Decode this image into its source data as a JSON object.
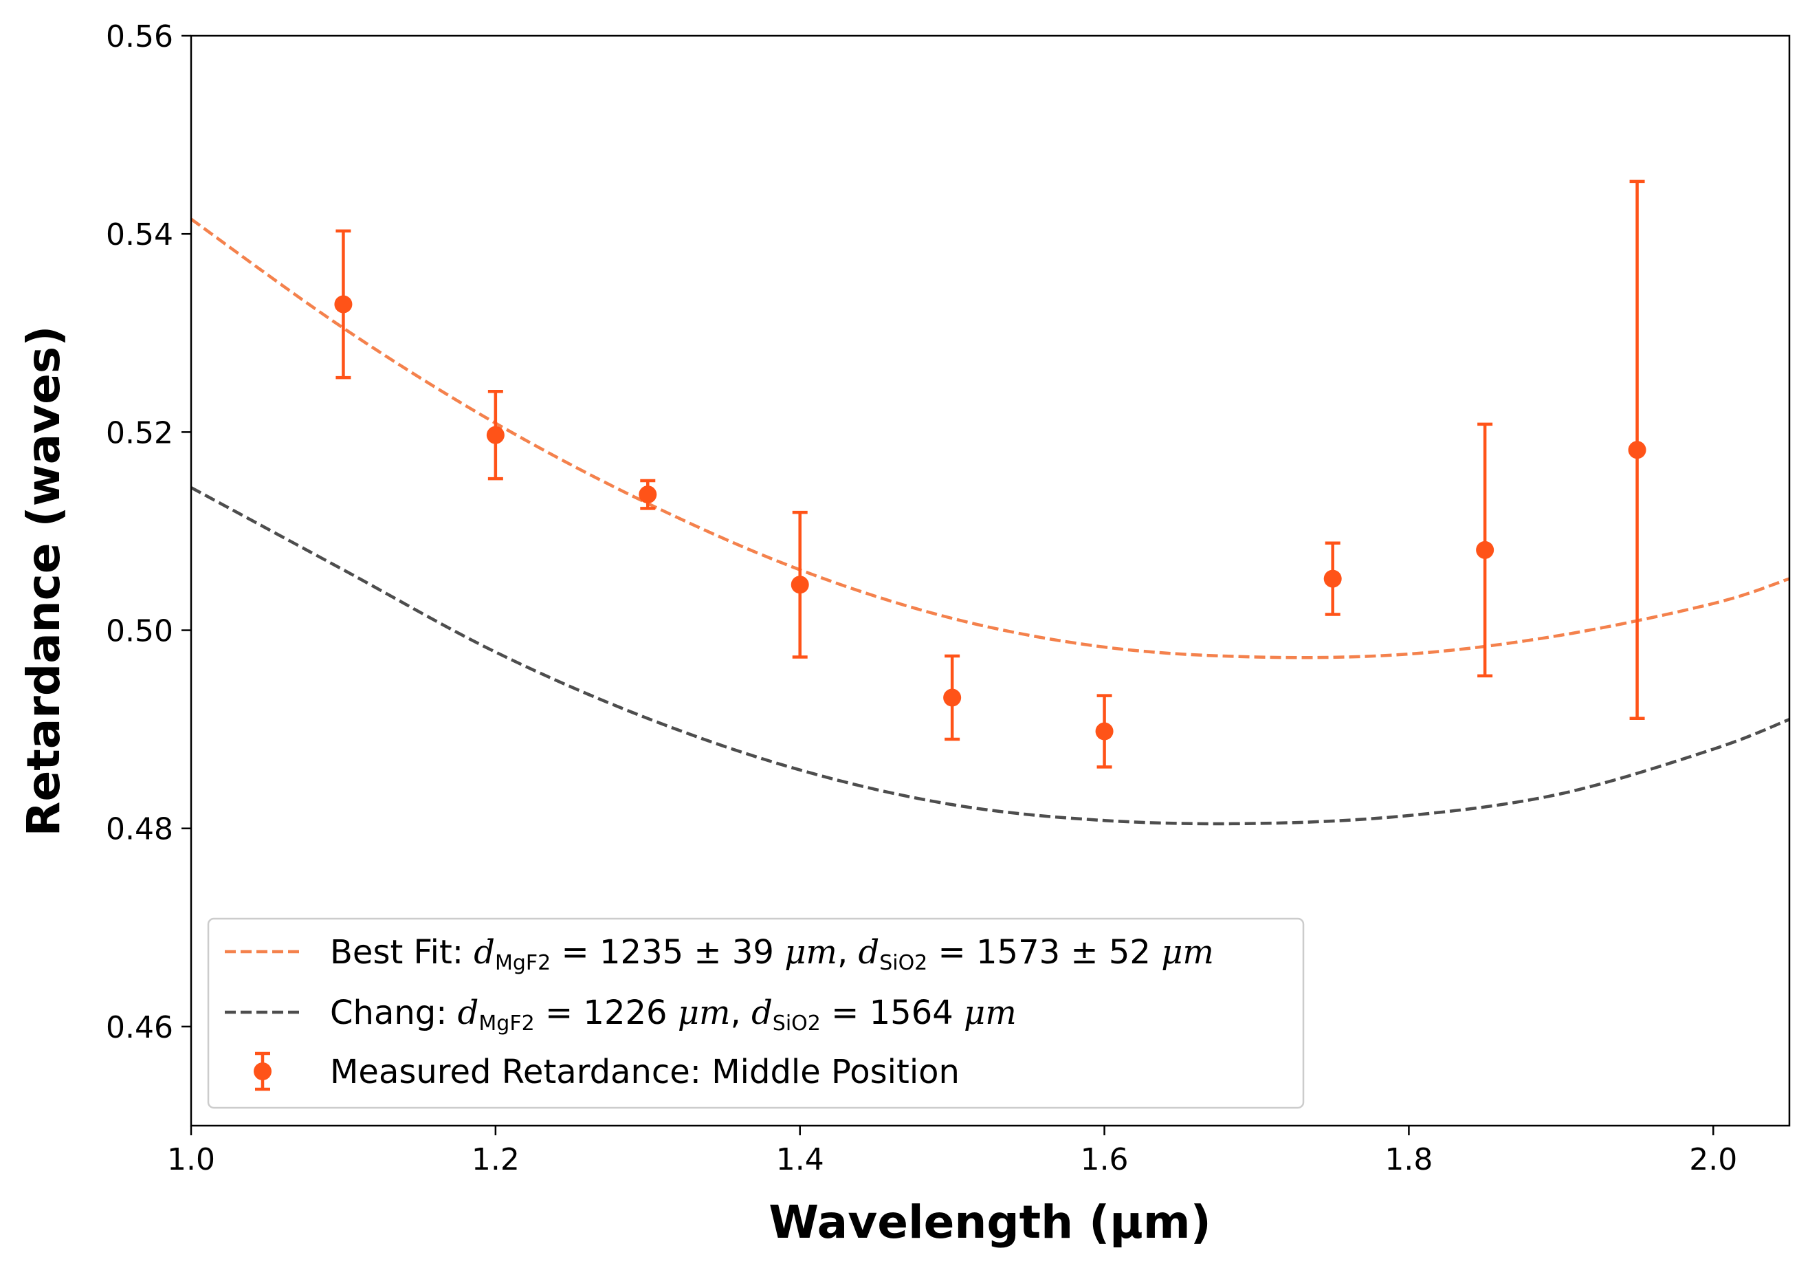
{
  "chart_data": {
    "type": "scatter",
    "xlabel": "Wavelength (µm)",
    "ylabel": "Retardance (waves)",
    "xlim": [
      1.0,
      2.05
    ],
    "ylim": [
      0.45,
      0.56
    ],
    "x_ticks": [
      1.0,
      1.2,
      1.4,
      1.6,
      1.8,
      2.0
    ],
    "x_tick_labels": [
      "1.0",
      "1.2",
      "1.4",
      "1.6",
      "1.8",
      "2.0"
    ],
    "y_ticks": [
      0.46,
      0.48,
      0.5,
      0.52,
      0.54,
      0.56
    ],
    "y_tick_labels": [
      "0.46",
      "0.48",
      "0.50",
      "0.52",
      "0.54",
      "0.56"
    ],
    "grid": false,
    "legend_position": "lower-left",
    "series": [
      {
        "name": "Best Fit",
        "kind": "dashed-line",
        "color": "#F4814C",
        "x": [
          1.0,
          1.1,
          1.2,
          1.3,
          1.4,
          1.5,
          1.6,
          1.7,
          1.8,
          1.9,
          2.0,
          2.05
        ],
        "y": [
          0.5415,
          0.5305,
          0.5209,
          0.5128,
          0.5061,
          0.5012,
          0.4983,
          0.4973,
          0.4976,
          0.4995,
          0.5027,
          0.5052
        ]
      },
      {
        "name": "Chang",
        "kind": "dashed-line",
        "color": "#4D4D4D",
        "x": [
          1.0,
          1.1,
          1.2,
          1.3,
          1.4,
          1.5,
          1.6,
          1.7,
          1.8,
          1.9,
          2.0,
          2.05
        ],
        "y": [
          0.5144,
          0.5061,
          0.4978,
          0.4911,
          0.4859,
          0.4824,
          0.4808,
          0.4805,
          0.4813,
          0.4835,
          0.488,
          0.491
        ]
      },
      {
        "name": "Measured Retardance: Middle Position",
        "kind": "errorbar",
        "color": "#FF5318",
        "x": [
          1.1,
          1.2,
          1.3,
          1.4,
          1.5,
          1.6,
          1.75,
          1.85,
          1.95
        ],
        "y": [
          0.5329,
          0.5197,
          0.5137,
          0.5046,
          0.4932,
          0.4898,
          0.5052,
          0.5081,
          0.5182
        ],
        "yerr": [
          0.0074,
          0.0044,
          0.0014,
          0.0073,
          0.0042,
          0.0036,
          0.0036,
          0.0127,
          0.0271
        ]
      }
    ]
  },
  "legend": {
    "best_fit_prefix": "Best Fit: ",
    "best_fit_d": "d",
    "best_fit_sub1": "MgF2",
    "best_fit_eq1": " = 1235 ± 39",
    "best_fit_unit1": " μm",
    "best_fit_comma": ", ",
    "best_fit_d2": "d",
    "best_fit_sub2": "SiO2",
    "best_fit_eq2": " = 1573 ± 52",
    "best_fit_unit2": " μm",
    "chang_prefix": "Chang: ",
    "chang_d": "d",
    "chang_sub1": "MgF2",
    "chang_eq1": " = 1226",
    "chang_unit1": " μm",
    "chang_comma": ", ",
    "chang_d2": "d",
    "chang_sub2": "SiO2",
    "chang_eq2": " = 1564",
    "chang_unit2": " μm",
    "measured_label": "Measured Retardance: Middle Position"
  }
}
